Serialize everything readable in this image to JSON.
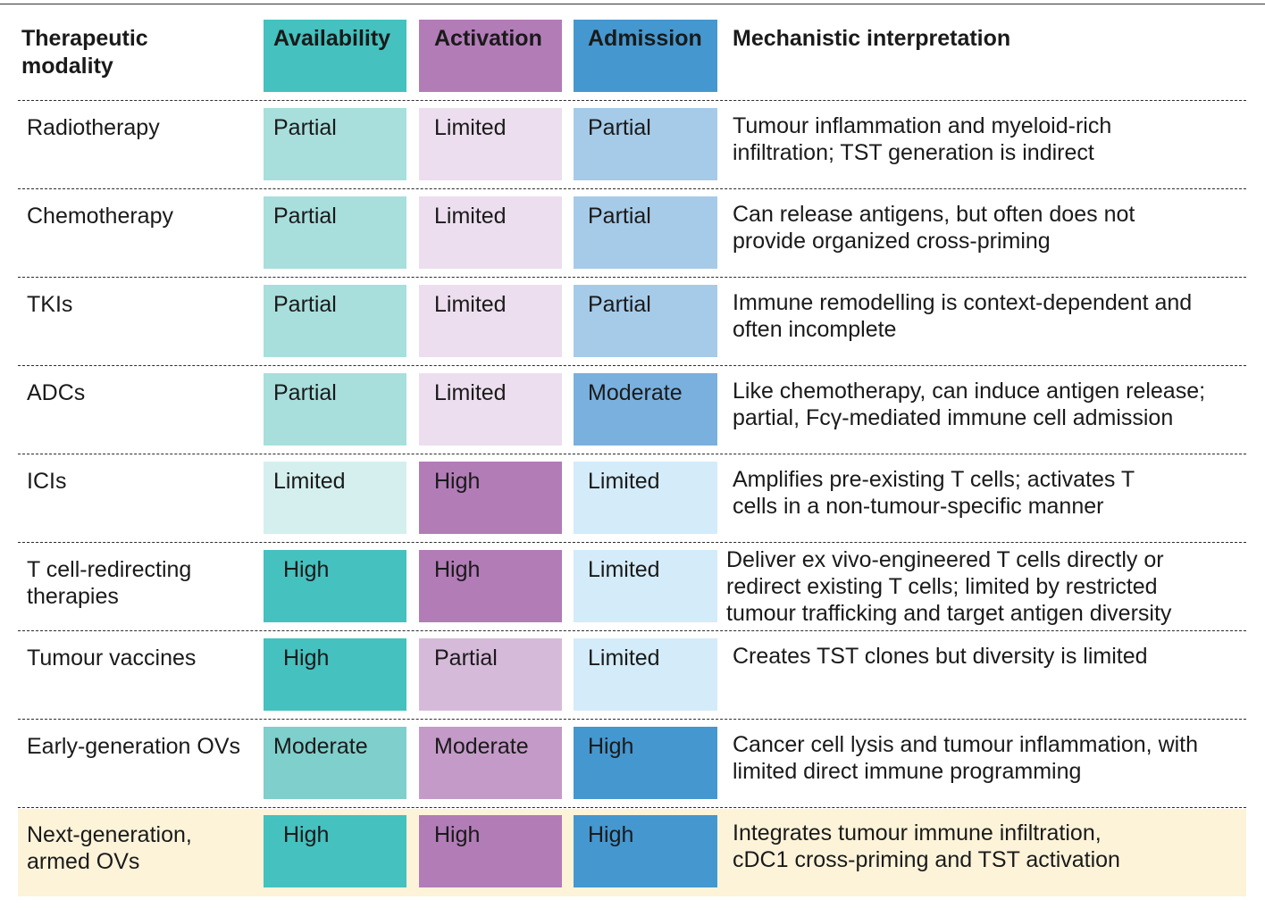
{
  "header": {
    "modality": "Therapeutic modality",
    "availability": "Availability",
    "activation": "Activation",
    "admission": "Admission",
    "interpretation": "Mechanistic interpretation"
  },
  "colors": {
    "availability_header": "#45c1bf",
    "activation_header": "#b27cb7",
    "admission_header": "#4597cf",
    "highlight_row": "#fdf3d9",
    "availability": {
      "High": "#45c1bf",
      "Moderate": "#7fcfcc",
      "Partial": "#a8dfdd",
      "Limited": "#d5efef"
    },
    "activation": {
      "High": "#b27cb7",
      "Moderate": "#c49ac8",
      "Partial": "#d6bada",
      "Limited": "#ecdeee"
    },
    "admission": {
      "High": "#4597cf",
      "Moderate": "#79b0de",
      "Partial": "#a5cbe9",
      "Limited": "#d4ebf9"
    }
  },
  "rows": [
    {
      "modality": "Radiotherapy",
      "availability": "Partial",
      "activation": "Limited",
      "admission": "Partial",
      "interpretation": "Tumour inflammation and myeloid-rich infiltration; TST generation is indirect"
    },
    {
      "modality": "Chemotherapy",
      "availability": "Partial",
      "activation": "Limited",
      "admission": "Partial",
      "interpretation": "Can release antigens, but often does not provide organized cross-priming"
    },
    {
      "modality": "TKIs",
      "availability": "Partial",
      "activation": "Limited",
      "admission": "Partial",
      "interpretation": "Immune remodelling is context-dependent and often incomplete"
    },
    {
      "modality": "ADCs",
      "availability": "Partial",
      "activation": "Limited",
      "admission": "Moderate",
      "interpretation": "Like chemotherapy, can induce antigen release; partial, Fcγ-mediated immune cell admission"
    },
    {
      "modality": "ICIs",
      "availability": "Limited",
      "activation": "High",
      "admission": "Limited",
      "interpretation": "Amplifies pre-existing T cells; activates T cells in a non-tumour-specific manner"
    },
    {
      "modality": "T cell-redirecting therapies",
      "availability": "High",
      "activation": "High",
      "admission": "Limited",
      "interpretation": "Deliver ex vivo-engineered T cells directly or redirect existing T cells; limited by restricted tumour trafficking and target antigen diversity"
    },
    {
      "modality": "Tumour vaccines",
      "availability": "High",
      "activation": "Partial",
      "admission": "Limited",
      "interpretation": "Creates TST clones but diversity is limited"
    },
    {
      "modality": "Early-generation OVs",
      "availability": "Moderate",
      "activation": "Moderate",
      "admission": "High",
      "interpretation": "Cancer cell lysis and tumour inflammation, with limited direct immune programming"
    },
    {
      "modality": "Next-generation, armed OVs",
      "availability": "High",
      "activation": "High",
      "admission": "High",
      "interpretation": "Integrates tumour immune infiltration, cDC1 cross-priming and TST activation"
    }
  ]
}
